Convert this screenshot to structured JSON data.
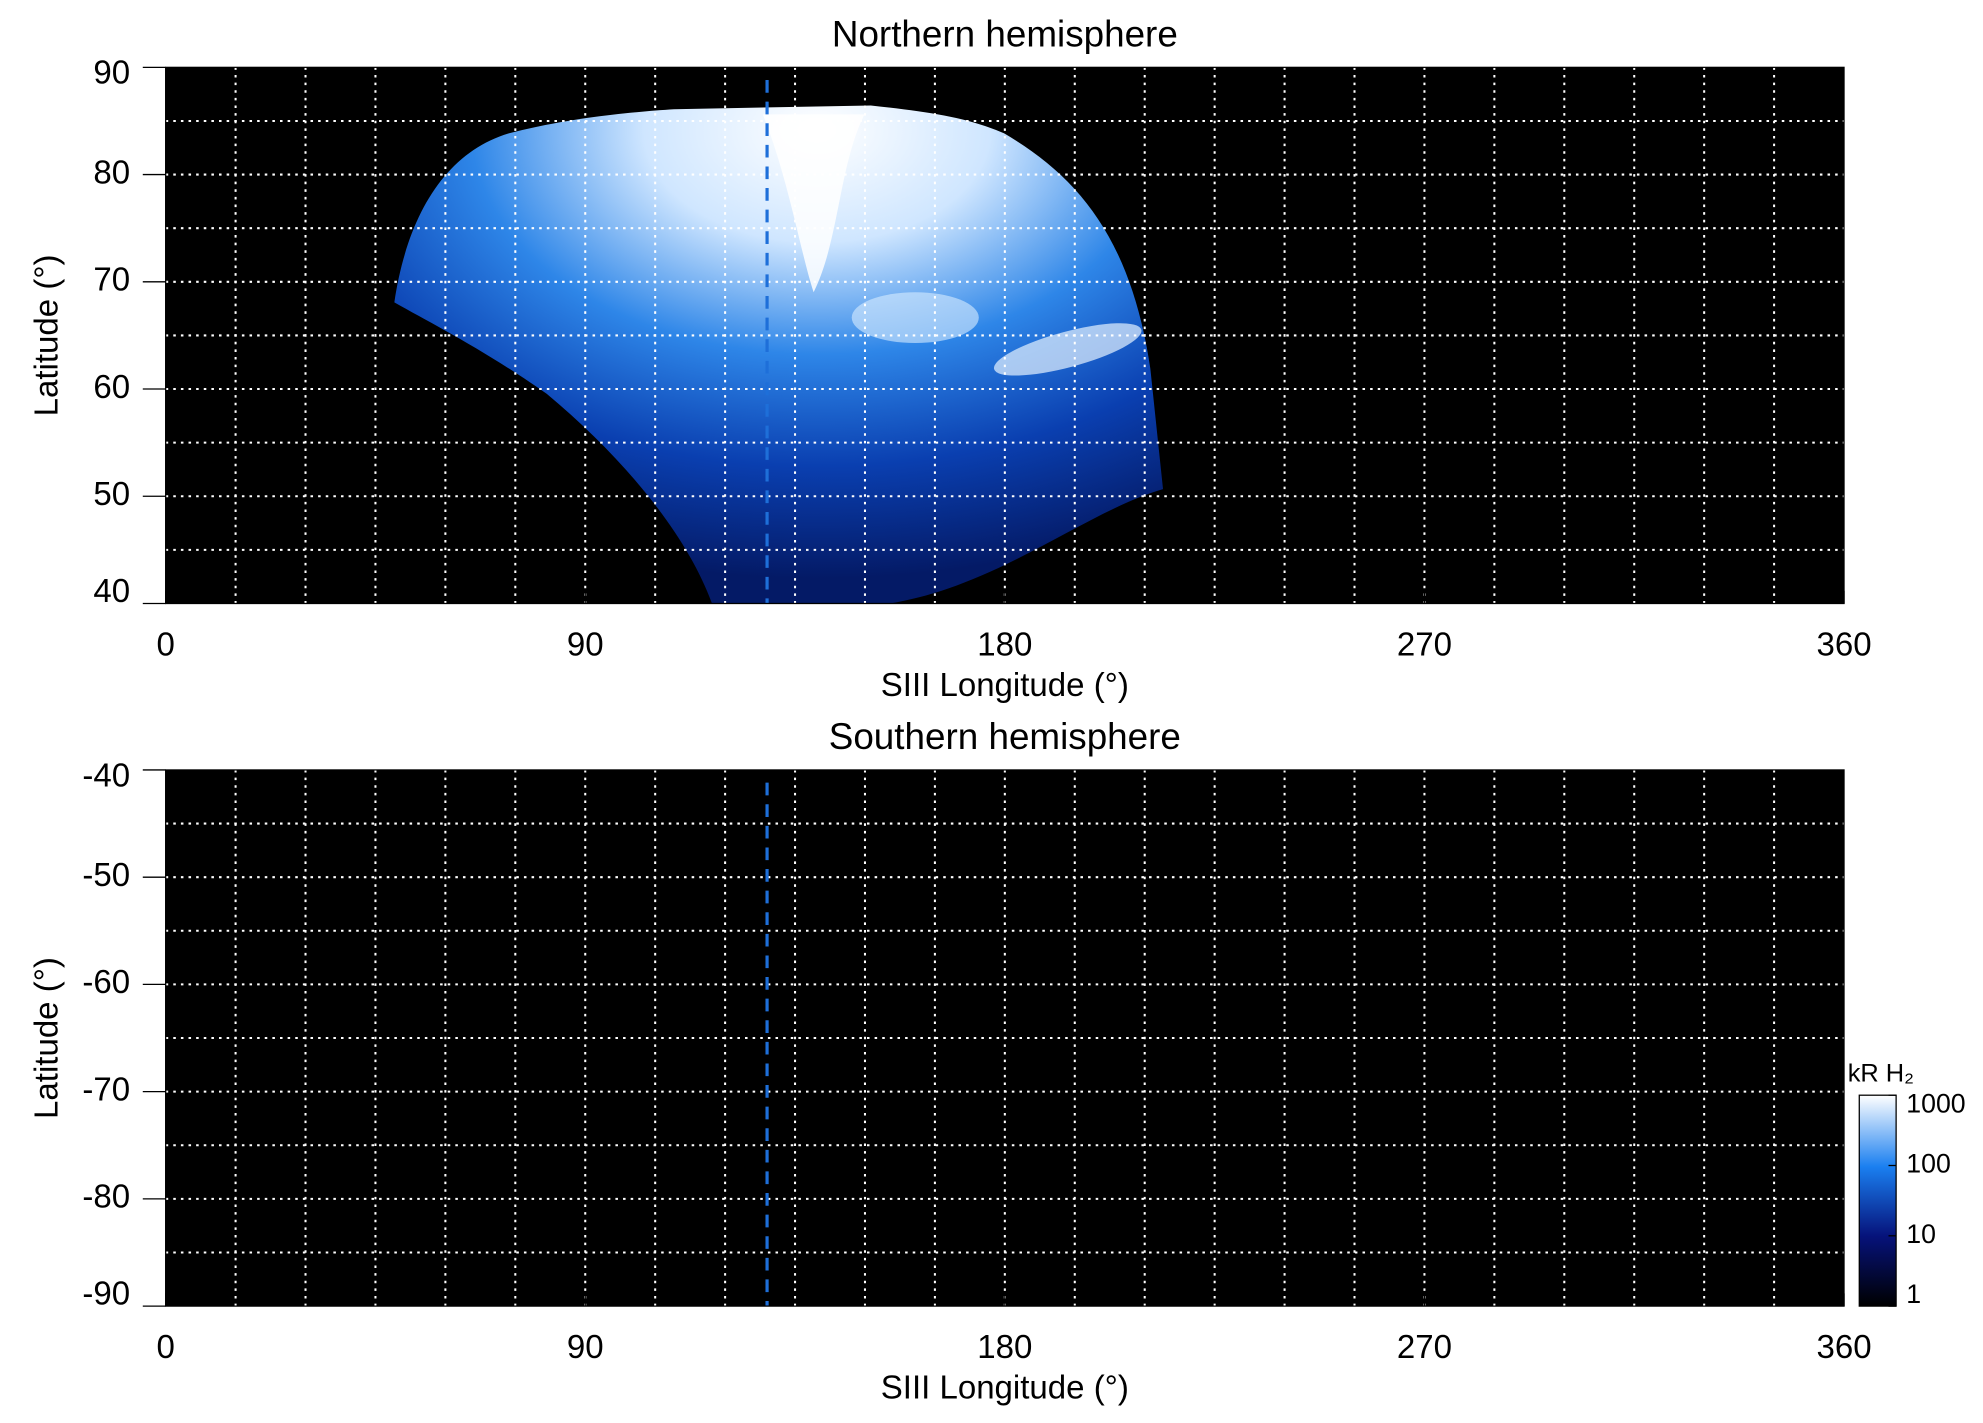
{
  "chart_data": [
    {
      "type": "heatmap",
      "title": "Northern hemisphere",
      "xlabel": "SIII Longitude (°)",
      "ylabel": "Latitude (°)",
      "xlim": [
        0,
        360
      ],
      "xticks": [
        0,
        90,
        180,
        270,
        360
      ],
      "ylim": [
        40,
        90
      ],
      "yticks": [
        40,
        50,
        60,
        70,
        80,
        90
      ],
      "xgrid": [
        15,
        30,
        45,
        60,
        75,
        90,
        105,
        120,
        135,
        150,
        165,
        180,
        195,
        210,
        225,
        240,
        255,
        270,
        285,
        300,
        315,
        330,
        345
      ],
      "ygrid": [
        45,
        50,
        55,
        60,
        65,
        70,
        75,
        80,
        85
      ],
      "vline": 129,
      "vline_color": "#1e6fd9",
      "background": "#000000"
    },
    {
      "type": "heatmap",
      "title": "Southern hemisphere",
      "xlabel": "SIII Longitude (°)",
      "ylabel": "Latitude (°)",
      "xlim": [
        0,
        360
      ],
      "xticks": [
        0,
        90,
        180,
        270,
        360
      ],
      "ylim": [
        -90,
        -40
      ],
      "yticks": [
        -40,
        -50,
        -60,
        -70,
        -80,
        -90
      ],
      "xgrid": [
        15,
        30,
        45,
        60,
        75,
        90,
        105,
        120,
        135,
        150,
        165,
        180,
        195,
        210,
        225,
        240,
        255,
        270,
        285,
        300,
        315,
        330,
        345
      ],
      "ygrid": [
        -85,
        -80,
        -75,
        -70,
        -65,
        -60,
        -55,
        -50,
        -45
      ],
      "vline": 129,
      "vline_color": "#1e6fd9",
      "background": "#000000",
      "colorbar": {
        "label": "kR H₂",
        "scale": "log",
        "lim": [
          1,
          1000
        ],
        "ticks": [
          1,
          10,
          100,
          1000
        ]
      }
    }
  ]
}
